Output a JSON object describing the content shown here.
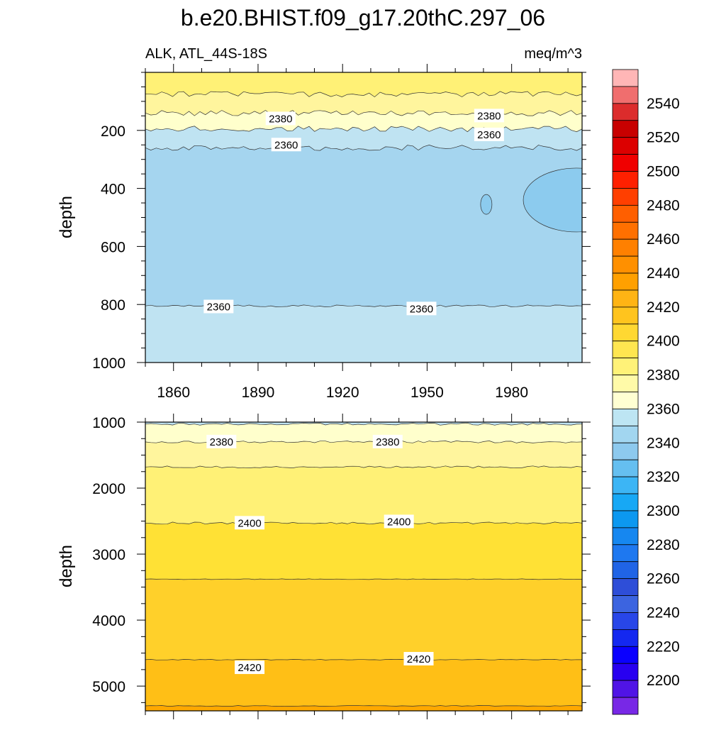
{
  "title": "b.e20.BHIST.f09_g17.20thC.297_06",
  "chart_data": [
    {
      "type": "heatmap",
      "subtype": "filled-contour",
      "variable_label": "ALK, ATL_44S-18S",
      "units_label": "meq/m^3",
      "ylabel": "depth",
      "xlim": [
        1850,
        2005
      ],
      "ylim": [
        0,
        1000
      ],
      "y_inverted": true,
      "x_ticks": [
        1860,
        1890,
        1920,
        1950,
        1980
      ],
      "x_tick_labels": [
        "1860",
        "1890",
        "1920",
        "1950",
        "1980"
      ],
      "y_ticks": [
        200,
        400,
        600,
        800,
        1000
      ],
      "y_tick_labels": [
        "200",
        "400",
        "600",
        "800",
        "1000"
      ],
      "bands": [
        {
          "from": 0,
          "to": 75,
          "level": 2395,
          "color": "#fff176"
        },
        {
          "from": 75,
          "to": 140,
          "level": 2385,
          "color": "#fff59d"
        },
        {
          "from": 140,
          "to": 195,
          "level": 2375,
          "color": "#ffffcc"
        },
        {
          "from": 195,
          "to": 260,
          "level": 2365,
          "color": "#bfe3f2"
        },
        {
          "from": 260,
          "to": 805,
          "level": 2355,
          "color": "#a5d5ef"
        },
        {
          "from": 805,
          "to": 1000,
          "level": 2365,
          "color": "#bfe3f2"
        }
      ],
      "contour_labels": [
        {
          "text": "2380",
          "x": 1898,
          "y": 160
        },
        {
          "text": "2380",
          "x": 1972,
          "y": 150
        },
        {
          "text": "2360",
          "x": 1900,
          "y": 250
        },
        {
          "text": "2360",
          "x": 1972,
          "y": 215
        },
        {
          "text": "2360",
          "x": 1876,
          "y": 808
        },
        {
          "text": "2360",
          "x": 1948,
          "y": 815
        }
      ]
    },
    {
      "type": "heatmap",
      "subtype": "filled-contour",
      "ylabel": "depth",
      "xlim": [
        1850,
        2005
      ],
      "ylim": [
        1000,
        5375
      ],
      "y_inverted": true,
      "y_ticks": [
        1000,
        2000,
        3000,
        4000,
        5000
      ],
      "y_tick_labels": [
        "1000",
        "2000",
        "3000",
        "4000",
        "5000"
      ],
      "bands": [
        {
          "from": 1000,
          "to": 1030,
          "level": 2365,
          "color": "#bfe3f2"
        },
        {
          "from": 1030,
          "to": 1300,
          "level": 2375,
          "color": "#ffffcc"
        },
        {
          "from": 1300,
          "to": 1680,
          "level": 2385,
          "color": "#fff59d"
        },
        {
          "from": 1680,
          "to": 2530,
          "level": 2395,
          "color": "#fff176"
        },
        {
          "from": 2530,
          "to": 3380,
          "level": 2405,
          "color": "#ffe135"
        },
        {
          "from": 3380,
          "to": 4600,
          "level": 2415,
          "color": "#ffd02a"
        },
        {
          "from": 4600,
          "to": 5300,
          "level": 2425,
          "color": "#ffbf16"
        },
        {
          "from": 5300,
          "to": 5375,
          "level": 2435,
          "color": "#ffa800"
        }
      ],
      "contour_labels": [
        {
          "text": "2380",
          "x": 1877,
          "y": 1300
        },
        {
          "text": "2380",
          "x": 1936,
          "y": 1300
        },
        {
          "text": "2400",
          "x": 1887,
          "y": 2530
        },
        {
          "text": "2400",
          "x": 1940,
          "y": 2510
        },
        {
          "text": "2420",
          "x": 1887,
          "y": 4720
        },
        {
          "text": "2420",
          "x": 1947,
          "y": 4590
        }
      ]
    }
  ],
  "colorbar": {
    "colors": [
      "#ffb6b6",
      "#f06e6e",
      "#dc2c2c",
      "#c80000",
      "#dc0000",
      "#f00000",
      "#ff2000",
      "#ff3f00",
      "#ff5f00",
      "#ff7000",
      "#ff8000",
      "#ff9000",
      "#ffa000",
      "#ffb414",
      "#ffc41e",
      "#ffd832",
      "#ffe650",
      "#fff278",
      "#fffaa8",
      "#ffffd2",
      "#bde5f3",
      "#a2d6f0",
      "#8dc9ee",
      "#65bff0",
      "#3cb5f5",
      "#17a8f5",
      "#0c98f0",
      "#1687f0",
      "#1e78f0",
      "#2064e6",
      "#2e4ed8",
      "#3c64e0",
      "#2846e8",
      "#1428f0",
      "#0a00ff",
      "#2800f0",
      "#5014e6",
      "#7828e6"
    ],
    "tick_labels": [
      "2540",
      "2520",
      "2500",
      "2480",
      "2460",
      "2440",
      "2420",
      "2400",
      "2380",
      "2360",
      "2340",
      "2320",
      "2300",
      "2280",
      "2260",
      "2240",
      "2220",
      "2200"
    ]
  }
}
